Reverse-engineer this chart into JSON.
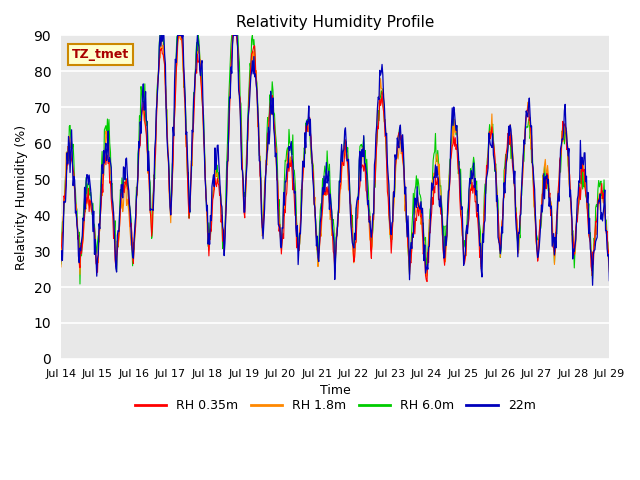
{
  "title": "Relativity Humidity Profile",
  "xlabel": "Time",
  "ylabel": "Relativity Humidity (%)",
  "ylim": [
    0,
    90
  ],
  "yticks": [
    0,
    10,
    20,
    30,
    40,
    50,
    60,
    70,
    80,
    90
  ],
  "x_tick_labels": [
    "Jul 14",
    "Jul 15",
    "Jul 16",
    "Jul 17",
    "Jul 18",
    "Jul 19",
    "Jul 20",
    "Jul 21",
    "Jul 22",
    "Jul 23",
    "Jul 24",
    "Jul 25",
    "Jul 26",
    "Jul 27",
    "Jul 28",
    "Jul 29"
  ],
  "annotation_text": "TZ_tmet",
  "annotation_color": "#aa0000",
  "annotation_bg": "#ffffcc",
  "annotation_border": "#cc8800",
  "series_colors": [
    "#ff0000",
    "#ff8800",
    "#00cc00",
    "#0000bb"
  ],
  "series_labels": [
    "RH 0.35m",
    "RH 1.8m",
    "RH 6.0m",
    "22m"
  ],
  "plot_bg": "#e8e8e8",
  "grid_color": "#ffffff",
  "n_points": 720,
  "seed": 7
}
